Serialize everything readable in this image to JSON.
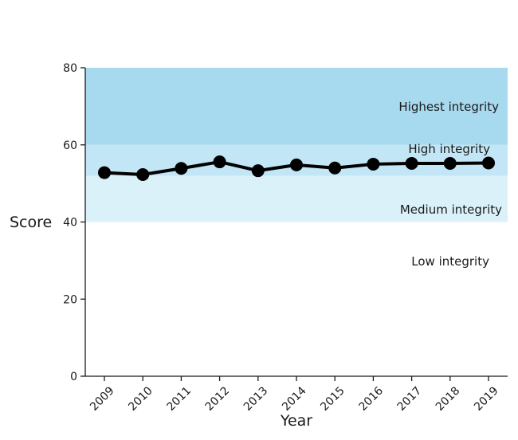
{
  "chart_data": {
    "type": "line",
    "xlabel": "Year",
    "ylabel": "Score",
    "ylim": [
      0,
      80
    ],
    "yticks": [
      0,
      20,
      40,
      60,
      80
    ],
    "x": [
      "2009",
      "2010",
      "2011",
      "2012",
      "2013",
      "2014",
      "2015",
      "2016",
      "2017",
      "2018",
      "2019"
    ],
    "series": [
      {
        "values": [
          52.8,
          52.3,
          53.9,
          55.6,
          53.3,
          54.8,
          54.0,
          55.0,
          55.2,
          55.2,
          55.3
        ]
      }
    ],
    "bands": [
      {
        "label": "Highest integrity",
        "from": 60,
        "to": 80,
        "color": "#a7d9ef"
      },
      {
        "label": "High integrity",
        "from": 52,
        "to": 60,
        "color": "#c2e6f5"
      },
      {
        "label": "Medium integrity",
        "from": 40,
        "to": 52,
        "color": "#daf1fa"
      },
      {
        "label": "Low integrity",
        "from": 0,
        "to": 40,
        "color": "#ffffff"
      }
    ],
    "grid": false
  }
}
